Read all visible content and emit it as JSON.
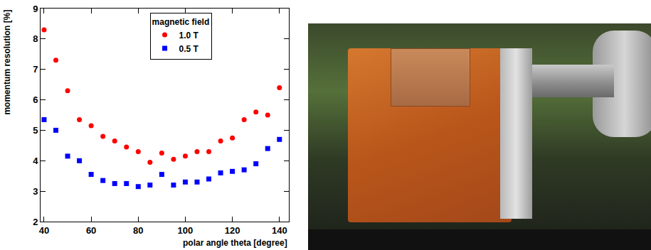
{
  "chart_data": {
    "type": "scatter",
    "x_label": "polar angle theta [degree]",
    "y_label": "momentum resolution [%]",
    "legend_title": "magnetic field",
    "legend": "upper center",
    "grid": false,
    "x": [
      40,
      45,
      50,
      55,
      60,
      65,
      70,
      75,
      80,
      85,
      90,
      95,
      100,
      105,
      110,
      115,
      120,
      125,
      130,
      135,
      140
    ],
    "series": [
      {
        "name": "1.0 T",
        "color": "#ff0000",
        "marker": "circle",
        "values": [
          8.3,
          7.3,
          6.3,
          5.35,
          5.15,
          4.8,
          4.65,
          4.45,
          4.3,
          3.95,
          4.25,
          4.05,
          4.15,
          4.3,
          4.3,
          4.65,
          4.75,
          5.35,
          5.6,
          5.5,
          6.4
        ]
      },
      {
        "name": "0.5 T",
        "color": "#0000ff",
        "marker": "square",
        "values": [
          5.35,
          5.0,
          4.15,
          4.0,
          3.55,
          3.35,
          3.25,
          3.25,
          3.15,
          3.2,
          3.55,
          3.2,
          3.3,
          3.3,
          3.4,
          3.6,
          3.65,
          3.7,
          3.9,
          4.4,
          4.7
        ]
      }
    ],
    "xlim": [
      38.5,
      144
    ],
    "xticks": [
      40,
      60,
      80,
      100,
      120,
      140
    ],
    "ylim": [
      2,
      9
    ],
    "yticks": [
      2,
      3,
      4,
      5,
      6,
      7,
      8,
      9
    ]
  }
}
